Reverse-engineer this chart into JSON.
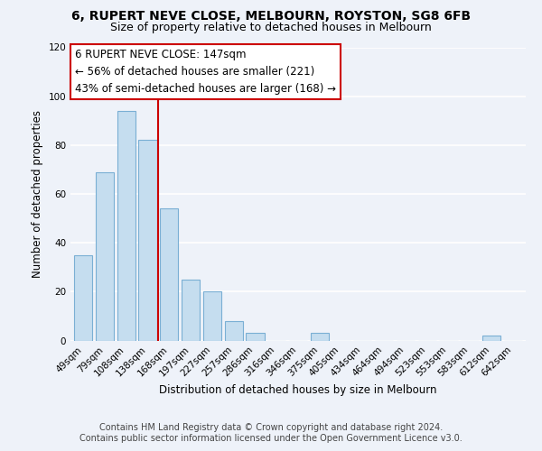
{
  "title": "6, RUPERT NEVE CLOSE, MELBOURN, ROYSTON, SG8 6FB",
  "subtitle": "Size of property relative to detached houses in Melbourn",
  "xlabel": "Distribution of detached houses by size in Melbourn",
  "ylabel": "Number of detached properties",
  "bar_color": "#c5ddef",
  "bar_edge_color": "#7aafd4",
  "categories": [
    "49sqm",
    "79sqm",
    "108sqm",
    "138sqm",
    "168sqm",
    "197sqm",
    "227sqm",
    "257sqm",
    "286sqm",
    "316sqm",
    "346sqm",
    "375sqm",
    "405sqm",
    "434sqm",
    "464sqm",
    "494sqm",
    "523sqm",
    "553sqm",
    "583sqm",
    "612sqm",
    "642sqm"
  ],
  "values": [
    35,
    69,
    94,
    82,
    54,
    25,
    20,
    8,
    3,
    0,
    0,
    3,
    0,
    0,
    0,
    0,
    0,
    0,
    0,
    2,
    0
  ],
  "ylim": [
    0,
    120
  ],
  "yticks": [
    0,
    20,
    40,
    60,
    80,
    100,
    120
  ],
  "vline_x": 3.5,
  "vline_color": "#cc0000",
  "annot_line1": "6 RUPERT NEVE CLOSE: 147sqm",
  "annot_line2": "← 56% of detached houses are smaller (221)",
  "annot_line3": "43% of semi-detached houses are larger (168) →",
  "footer_line1": "Contains HM Land Registry data © Crown copyright and database right 2024.",
  "footer_line2": "Contains public sector information licensed under the Open Government Licence v3.0.",
  "background_color": "#eef2f9",
  "grid_color": "#ffffff",
  "title_fontsize": 10,
  "subtitle_fontsize": 9,
  "axis_label_fontsize": 8.5,
  "tick_fontsize": 7.5,
  "annotation_fontsize": 8.5,
  "footer_fontsize": 7
}
